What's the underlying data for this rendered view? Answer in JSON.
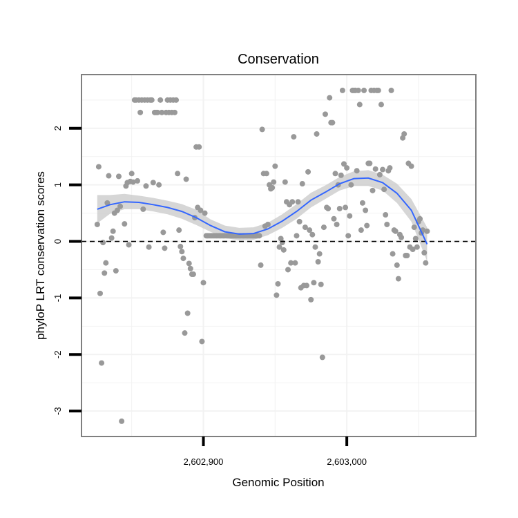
{
  "chart_data": {
    "type": "scatter",
    "title": "Conservation",
    "xlabel": "Genomic Position",
    "ylabel": "phyloP LRT conservation scores",
    "xlim": [
      2602815,
      2603090
    ],
    "ylim": [
      -3.45,
      2.95
    ],
    "x_ticks": [
      {
        "value": 2602900,
        "label": "2,602,900"
      },
      {
        "value": 2603000,
        "label": "2,603,000"
      }
    ],
    "y_ticks": [
      {
        "value": -3,
        "label": "-3"
      },
      {
        "value": -2,
        "label": "-2"
      },
      {
        "value": -1,
        "label": "-1"
      },
      {
        "value": 0,
        "label": "0"
      },
      {
        "value": 1,
        "label": "1"
      },
      {
        "value": 2,
        "label": "2"
      }
    ],
    "grid": true,
    "reference_line": {
      "y": 0,
      "style": "dashed"
    },
    "point_color": "#999999",
    "smooth_color": "#3366ff",
    "band_color": "#cccccc",
    "points": [
      [
        2602826,
        0.3
      ],
      [
        2602827,
        1.32
      ],
      [
        2602828,
        -0.92
      ],
      [
        2602829,
        -2.15
      ],
      [
        2602830,
        -0.02
      ],
      [
        2602831,
        -0.56
      ],
      [
        2602832,
        -0.38
      ],
      [
        2602833,
        0.68
      ],
      [
        2602834,
        1.16
      ],
      [
        2602836,
        0.06
      ],
      [
        2602837,
        0.18
      ],
      [
        2602838,
        0.5
      ],
      [
        2602839,
        -0.52
      ],
      [
        2602840,
        0.55
      ],
      [
        2602841,
        1.15
      ],
      [
        2602842,
        0.62
      ],
      [
        2602843,
        -3.18
      ],
      [
        2602845,
        0.31
      ],
      [
        2602846,
        0.98
      ],
      [
        2602847,
        1.04
      ],
      [
        2602848,
        -0.06
      ],
      [
        2602849,
        1.06
      ],
      [
        2602850,
        1.2
      ],
      [
        2602851,
        1.05
      ],
      [
        2602852,
        2.5
      ],
      [
        2602853,
        2.5
      ],
      [
        2602854,
        1.07
      ],
      [
        2602855,
        2.5
      ],
      [
        2602856,
        2.28
      ],
      [
        2602857,
        2.5
      ],
      [
        2602858,
        0.57
      ],
      [
        2602859,
        2.5
      ],
      [
        2602860,
        0.98
      ],
      [
        2602861,
        2.5
      ],
      [
        2602862,
        -0.1
      ],
      [
        2602863,
        2.5
      ],
      [
        2602864,
        2.5
      ],
      [
        2602865,
        1.04
      ],
      [
        2602866,
        2.28
      ],
      [
        2602867,
        2.28
      ],
      [
        2602868,
        2.28
      ],
      [
        2602869,
        1.0
      ],
      [
        2602870,
        2.5
      ],
      [
        2602871,
        2.28
      ],
      [
        2602872,
        0.16
      ],
      [
        2602873,
        -0.12
      ],
      [
        2602874,
        2.28
      ],
      [
        2602875,
        2.5
      ],
      [
        2602876,
        2.28
      ],
      [
        2602877,
        2.5
      ],
      [
        2602878,
        2.28
      ],
      [
        2602879,
        2.5
      ],
      [
        2602880,
        2.28
      ],
      [
        2602881,
        2.5
      ],
      [
        2602882,
        1.2
      ],
      [
        2602883,
        0.2
      ],
      [
        2602884,
        -0.09
      ],
      [
        2602885,
        -0.18
      ],
      [
        2602886,
        -0.3
      ],
      [
        2602887,
        -1.62
      ],
      [
        2602888,
        1.1
      ],
      [
        2602889,
        -1.27
      ],
      [
        2602890,
        -0.39
      ],
      [
        2602891,
        -0.48
      ],
      [
        2602892,
        -0.58
      ],
      [
        2602893,
        -0.58
      ],
      [
        2602894,
        0.42
      ],
      [
        2602895,
        1.67
      ],
      [
        2602896,
        0.6
      ],
      [
        2602897,
        1.67
      ],
      [
        2602898,
        0.55
      ],
      [
        2602899,
        -1.77
      ],
      [
        2602900,
        -0.73
      ],
      [
        2602901,
        0.5
      ],
      [
        2602902,
        0.1
      ],
      [
        2602903,
        0.1
      ],
      [
        2602904,
        0.1
      ],
      [
        2602905,
        0.1
      ],
      [
        2602906,
        0.1
      ],
      [
        2602907,
        0.1
      ],
      [
        2602908,
        0.1
      ],
      [
        2602909,
        0.1
      ],
      [
        2602910,
        0.1
      ],
      [
        2602911,
        0.1
      ],
      [
        2602912,
        0.1
      ],
      [
        2602913,
        0.1
      ],
      [
        2602914,
        0.1
      ],
      [
        2602915,
        0.1
      ],
      [
        2602916,
        0.1
      ],
      [
        2602917,
        0.1
      ],
      [
        2602918,
        0.1
      ],
      [
        2602919,
        0.1
      ],
      [
        2602920,
        0.1
      ],
      [
        2602921,
        0.1
      ],
      [
        2602922,
        0.1
      ],
      [
        2602923,
        0.1
      ],
      [
        2602924,
        0.1
      ],
      [
        2602925,
        0.1
      ],
      [
        2602926,
        0.1
      ],
      [
        2602927,
        0.1
      ],
      [
        2602928,
        0.1
      ],
      [
        2602929,
        0.1
      ],
      [
        2602930,
        0.1
      ],
      [
        2602931,
        0.1
      ],
      [
        2602932,
        0.1
      ],
      [
        2602933,
        0.1
      ],
      [
        2602934,
        0.1
      ],
      [
        2602935,
        0.1
      ],
      [
        2602936,
        0.1
      ],
      [
        2602937,
        0.1
      ],
      [
        2602938,
        0.1
      ],
      [
        2602939,
        0.1
      ],
      [
        2602940,
        -0.42
      ],
      [
        2602941,
        1.98
      ],
      [
        2602942,
        1.2
      ],
      [
        2602943,
        0.27
      ],
      [
        2602944,
        1.2
      ],
      [
        2602945,
        0.3
      ],
      [
        2602946,
        1.0
      ],
      [
        2602947,
        0.93
      ],
      [
        2602948,
        0.95
      ],
      [
        2602949,
        1.05
      ],
      [
        2602950,
        1.33
      ],
      [
        2602951,
        -0.95
      ],
      [
        2602952,
        -0.75
      ],
      [
        2602953,
        -0.1
      ],
      [
        2602954,
        0.05
      ],
      [
        2602955,
        -0.02
      ],
      [
        2602956,
        -0.15
      ],
      [
        2602957,
        1.05
      ],
      [
        2602958,
        0.7
      ],
      [
        2602959,
        -0.5
      ],
      [
        2602960,
        0.65
      ],
      [
        2602961,
        -0.38
      ],
      [
        2602962,
        0.7
      ],
      [
        2602963,
        1.85
      ],
      [
        2602964,
        -0.38
      ],
      [
        2602965,
        0.1
      ],
      [
        2602966,
        0.7
      ],
      [
        2602967,
        0.35
      ],
      [
        2602968,
        -0.82
      ],
      [
        2602969,
        1.02
      ],
      [
        2602970,
        -0.78
      ],
      [
        2602971,
        0.25
      ],
      [
        2602972,
        -0.78
      ],
      [
        2602973,
        1.23
      ],
      [
        2602974,
        0.2
      ],
      [
        2602975,
        -1.03
      ],
      [
        2602976,
        0.12
      ],
      [
        2602977,
        -0.73
      ],
      [
        2602978,
        -0.1
      ],
      [
        2602979,
        1.9
      ],
      [
        2602980,
        -0.36
      ],
      [
        2602981,
        -0.22
      ],
      [
        2602982,
        -0.76
      ],
      [
        2602983,
        -2.05
      ],
      [
        2602984,
        0.25
      ],
      [
        2602985,
        2.25
      ],
      [
        2602986,
        0.6
      ],
      [
        2602987,
        0.58
      ],
      [
        2602988,
        2.54
      ],
      [
        2602989,
        2.1
      ],
      [
        2602990,
        2.1
      ],
      [
        2602991,
        0.4
      ],
      [
        2602992,
        1.2
      ],
      [
        2602993,
        0.3
      ],
      [
        2602994,
        1.0
      ],
      [
        2602995,
        0.58
      ],
      [
        2602996,
        1.17
      ],
      [
        2602997,
        2.67
      ],
      [
        2602998,
        1.37
      ],
      [
        2602999,
        0.6
      ],
      [
        2603000,
        1.3
      ],
      [
        2603001,
        0.1
      ],
      [
        2603002,
        0.45
      ],
      [
        2603003,
        1.0
      ],
      [
        2603004,
        2.67
      ],
      [
        2603005,
        2.67
      ],
      [
        2603006,
        2.67
      ],
      [
        2603007,
        1.25
      ],
      [
        2603008,
        2.67
      ],
      [
        2603009,
        2.42
      ],
      [
        2603010,
        0.2
      ],
      [
        2603011,
        0.68
      ],
      [
        2603012,
        2.67
      ],
      [
        2603013,
        0.55
      ],
      [
        2603014,
        0.28
      ],
      [
        2603015,
        1.38
      ],
      [
        2603016,
        1.38
      ],
      [
        2603017,
        2.67
      ],
      [
        2603018,
        0.9
      ],
      [
        2603019,
        2.67
      ],
      [
        2603020,
        1.28
      ],
      [
        2603021,
        2.67
      ],
      [
        2603022,
        2.67
      ],
      [
        2603023,
        1.18
      ],
      [
        2603024,
        2.42
      ],
      [
        2603025,
        1.27
      ],
      [
        2603026,
        0.92
      ],
      [
        2603027,
        0.47
      ],
      [
        2603028,
        0.3
      ],
      [
        2603029,
        1.25
      ],
      [
        2603030,
        1.3
      ],
      [
        2603031,
        2.67
      ],
      [
        2603032,
        -0.22
      ],
      [
        2603033,
        0.2
      ],
      [
        2603034,
        0.18
      ],
      [
        2603035,
        -0.42
      ],
      [
        2603036,
        -0.66
      ],
      [
        2603037,
        0.12
      ],
      [
        2603038,
        0.07
      ],
      [
        2603039,
        1.83
      ],
      [
        2603040,
        1.9
      ],
      [
        2603041,
        -0.25
      ],
      [
        2603042,
        -0.25
      ],
      [
        2603043,
        1.38
      ],
      [
        2603044,
        -0.1
      ],
      [
        2603045,
        1.33
      ],
      [
        2603046,
        -0.14
      ],
      [
        2603047,
        0.25
      ],
      [
        2603048,
        0.05
      ],
      [
        2603049,
        -0.1
      ],
      [
        2603050,
        0.35
      ],
      [
        2603051,
        0.4
      ],
      [
        2603052,
        0.15
      ],
      [
        2603053,
        0.2
      ],
      [
        2603054,
        -0.2
      ],
      [
        2603055,
        -0.38
      ],
      [
        2603056,
        0.18
      ]
    ],
    "smooth_curve": [
      [
        2602826,
        0.57
      ],
      [
        2602835,
        0.65
      ],
      [
        2602845,
        0.7
      ],
      [
        2602855,
        0.69
      ],
      [
        2602865,
        0.65
      ],
      [
        2602875,
        0.6
      ],
      [
        2602885,
        0.53
      ],
      [
        2602895,
        0.42
      ],
      [
        2602905,
        0.28
      ],
      [
        2602915,
        0.17
      ],
      [
        2602925,
        0.13
      ],
      [
        2602935,
        0.14
      ],
      [
        2602945,
        0.22
      ],
      [
        2602955,
        0.36
      ],
      [
        2602965,
        0.53
      ],
      [
        2602975,
        0.73
      ],
      [
        2602985,
        0.87
      ],
      [
        2602995,
        1.02
      ],
      [
        2603005,
        1.11
      ],
      [
        2603015,
        1.12
      ],
      [
        2603025,
        1.04
      ],
      [
        2603035,
        0.85
      ],
      [
        2603045,
        0.55
      ],
      [
        2603056,
        -0.05
      ]
    ],
    "band_upper": [
      [
        2602826,
        0.82
      ],
      [
        2602835,
        0.82
      ],
      [
        2602845,
        0.84
      ],
      [
        2602855,
        0.81
      ],
      [
        2602865,
        0.77
      ],
      [
        2602875,
        0.72
      ],
      [
        2602885,
        0.66
      ],
      [
        2602895,
        0.56
      ],
      [
        2602905,
        0.39
      ],
      [
        2602915,
        0.28
      ],
      [
        2602925,
        0.24
      ],
      [
        2602935,
        0.25
      ],
      [
        2602945,
        0.33
      ],
      [
        2602955,
        0.48
      ],
      [
        2602965,
        0.66
      ],
      [
        2602975,
        0.86
      ],
      [
        2602985,
        0.99
      ],
      [
        2602995,
        1.14
      ],
      [
        2603005,
        1.24
      ],
      [
        2603015,
        1.26
      ],
      [
        2603025,
        1.18
      ],
      [
        2603035,
        1.02
      ],
      [
        2603045,
        0.75
      ],
      [
        2603056,
        0.25
      ]
    ],
    "band_lower": [
      [
        2602826,
        0.32
      ],
      [
        2602835,
        0.49
      ],
      [
        2602845,
        0.57
      ],
      [
        2602855,
        0.57
      ],
      [
        2602865,
        0.53
      ],
      [
        2602875,
        0.48
      ],
      [
        2602885,
        0.4
      ],
      [
        2602895,
        0.29
      ],
      [
        2602905,
        0.17
      ],
      [
        2602915,
        0.06
      ],
      [
        2602925,
        0.02
      ],
      [
        2602935,
        0.03
      ],
      [
        2602945,
        0.11
      ],
      [
        2602955,
        0.24
      ],
      [
        2602965,
        0.4
      ],
      [
        2602975,
        0.6
      ],
      [
        2602985,
        0.75
      ],
      [
        2602995,
        0.9
      ],
      [
        2603005,
        0.98
      ],
      [
        2603015,
        0.98
      ],
      [
        2603025,
        0.9
      ],
      [
        2603035,
        0.68
      ],
      [
        2603045,
        0.35
      ],
      [
        2603056,
        -0.35
      ]
    ]
  }
}
